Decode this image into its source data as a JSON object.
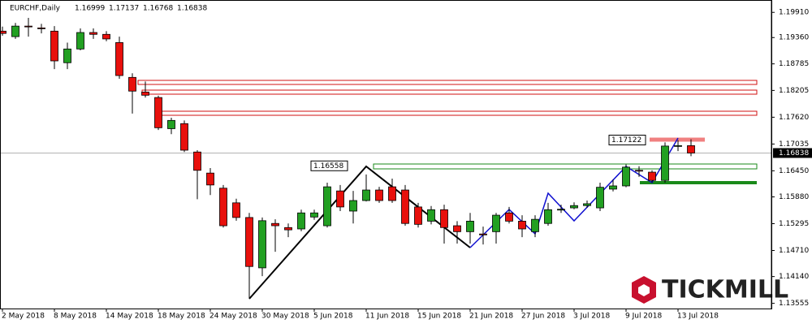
{
  "chart_data": {
    "type": "candlestick",
    "title": "EURCHF,Daily",
    "header_values": [
      1.16999,
      1.17137,
      1.16768,
      1.16838
    ],
    "categories": [
      "2 May 2018",
      null,
      null,
      null,
      "8 May 2018",
      null,
      null,
      null,
      "14 May 2018",
      null,
      null,
      null,
      "18 May 2018",
      null,
      null,
      null,
      "24 May 2018",
      null,
      null,
      null,
      "30 May 2018",
      null,
      null,
      null,
      "5 Jun 2018",
      null,
      null,
      null,
      "11 Jun 2018",
      null,
      null,
      null,
      "15 Jun 2018",
      null,
      null,
      null,
      "21 Jun 2018",
      null,
      null,
      null,
      "27 Jun 2018",
      null,
      null,
      null,
      "3 Jul 2018",
      null,
      null,
      null,
      "9 Jul 2018",
      null,
      null,
      null,
      "13 Jul 2018",
      null
    ],
    "open": [
      1.195,
      1.1938,
      1.1961,
      1.1957,
      1.195,
      1.1881,
      1.1911,
      1.1947,
      1.1943,
      1.1925,
      1.1849,
      1.1817,
      1.1805,
      1.1737,
      1.1748,
      1.1686,
      1.164,
      1.1607,
      1.1575,
      1.1543,
      1.1433,
      1.153,
      1.1521,
      1.1518,
      1.1544,
      1.1525,
      1.1601,
      1.1557,
      1.158,
      1.1603,
      1.161,
      1.1603,
      1.1566,
      1.1535,
      1.156,
      1.1525,
      1.1512,
      1.1507,
      1.1512,
      1.1553,
      1.1535,
      1.1512,
      1.153,
      1.156,
      1.1564,
      1.1569,
      1.1564,
      1.1605,
      1.1612,
      1.1646,
      1.1642,
      1.1624,
      1.1699,
      1.16999
    ],
    "high": [
      1.196,
      1.1968,
      1.1979,
      1.1966,
      1.1961,
      1.1925,
      1.1956,
      1.1956,
      1.195,
      1.1938,
      1.1858,
      1.184,
      1.1809,
      1.1761,
      1.1755,
      1.169,
      1.1651,
      1.1614,
      1.1584,
      1.1553,
      1.1543,
      1.1539,
      1.153,
      1.156,
      1.156,
      1.1619,
      1.1614,
      1.1601,
      1.1637,
      1.161,
      1.1628,
      1.1614,
      1.1575,
      1.1568,
      1.1571,
      1.1535,
      1.1553,
      1.1523,
      1.1553,
      1.1566,
      1.1548,
      1.1548,
      1.1575,
      1.1571,
      1.1576,
      1.158,
      1.1619,
      1.1626,
      1.1659,
      1.1655,
      1.1646,
      1.1707,
      1.1712,
      1.17137
    ],
    "low": [
      1.194,
      1.1933,
      1.1938,
      1.1945,
      1.1867,
      1.1867,
      1.1908,
      1.1933,
      1.1928,
      1.1846,
      1.177,
      1.1805,
      1.1734,
      1.1725,
      1.1686,
      1.1583,
      1.1592,
      1.1521,
      1.1536,
      1.1366,
      1.1415,
      1.1468,
      1.15,
      1.1513,
      1.1538,
      1.1521,
      1.1557,
      1.153,
      1.1578,
      1.1575,
      1.1575,
      1.1525,
      1.1521,
      1.1528,
      1.1486,
      1.1486,
      1.1486,
      1.1484,
      1.1486,
      1.153,
      1.15,
      1.15,
      1.1525,
      1.1553,
      1.1561,
      1.1564,
      1.1557,
      1.16,
      1.1609,
      1.1632,
      1.1619,
      1.1619,
      1.1688,
      1.16768
    ],
    "close": [
      1.1945,
      1.1961,
      1.196,
      1.1956,
      1.1885,
      1.1911,
      1.1947,
      1.1943,
      1.1933,
      1.1853,
      1.1819,
      1.181,
      1.1739,
      1.1755,
      1.169,
      1.1646,
      1.1614,
      1.1525,
      1.1543,
      1.1436,
      1.1536,
      1.1525,
      1.1516,
      1.1553,
      1.1553,
      1.161,
      1.1566,
      1.158,
      1.1603,
      1.158,
      1.158,
      1.153,
      1.1528,
      1.156,
      1.1521,
      1.1512,
      1.1535,
      1.1505,
      1.1548,
      1.1535,
      1.1518,
      1.1539,
      1.156,
      1.1561,
      1.1569,
      1.1573,
      1.1609,
      1.1612,
      1.1653,
      1.1645,
      1.1624,
      1.1699,
      1.17,
      1.16838
    ],
    "up_color": "#22a022",
    "down_color": "#e8100c",
    "ylim": [
      1.13442,
      1.2018
    ],
    "yticks": [
      {
        "value": 1.1991,
        "label": "1.19910"
      },
      {
        "value": 1.1936,
        "label": "1.19360"
      },
      {
        "value": 1.18785,
        "label": "1.18785"
      },
      {
        "value": 1.18205,
        "label": "1.18205"
      },
      {
        "value": 1.1762,
        "label": "1.17620"
      },
      {
        "value": 1.17035,
        "label": "1.17035"
      },
      {
        "value": 1.1645,
        "label": "1.16450"
      },
      {
        "value": 1.1588,
        "label": "1.15880"
      },
      {
        "value": 1.15295,
        "label": "1.15295"
      },
      {
        "value": 1.1471,
        "label": "1.14710"
      },
      {
        "value": 1.1414,
        "label": "1.14140"
      },
      {
        "value": 1.13555,
        "label": "1.13555"
      }
    ],
    "last_price": 1.16838,
    "annotations": [
      1.16558,
      1.17122
    ],
    "watermark": "TICKMILL"
  }
}
